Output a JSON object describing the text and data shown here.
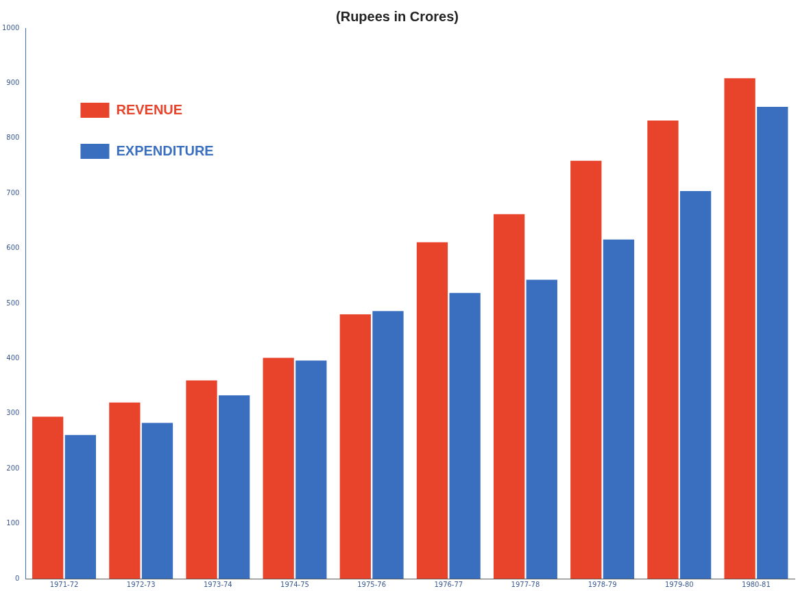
{
  "chart_data": {
    "type": "bar",
    "title": "(Rupees in Crores)",
    "categories": [
      "1971-72",
      "1972-73",
      "1973-74",
      "1974-75",
      "1975-76",
      "1976-77",
      "1977-78",
      "1978-79",
      "1979-80",
      "1980-81"
    ],
    "series": [
      {
        "name": "REVENUE",
        "color": "#e8432b",
        "values": [
          294,
          320,
          360,
          401,
          480,
          611,
          662,
          759,
          832,
          909
        ]
      },
      {
        "name": "EXPENDITURE",
        "color": "#3a6fc0",
        "values": [
          261,
          283,
          333,
          396,
          486,
          519,
          543,
          616,
          704,
          857
        ]
      }
    ],
    "ylim": [
      0,
      1000
    ],
    "yticks": [
      0,
      100,
      200,
      300,
      400,
      500,
      600,
      700,
      800,
      900,
      1000
    ],
    "grid": false,
    "legend": "top left"
  }
}
